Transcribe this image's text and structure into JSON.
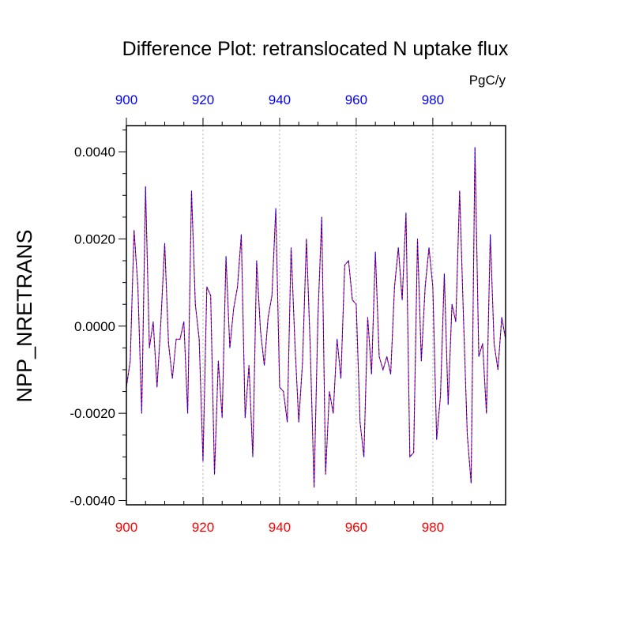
{
  "chart_data": {
    "type": "line",
    "title": "Difference Plot: retranslocated N uptake flux",
    "units": "PgC/y",
    "ylabel": "NPP_NRETRANS",
    "xlabel": "",
    "xlim": [
      900,
      999
    ],
    "ylim": [
      -0.0041,
      0.0046
    ],
    "x_ticks": [
      900,
      920,
      940,
      960,
      980
    ],
    "y_ticks": [
      0.004,
      0.002,
      0.0,
      -0.002,
      -0.004
    ],
    "y_tick_labels": [
      "0.0040",
      "0.0020",
      "0.0000",
      "-0.0020",
      "-0.0040"
    ],
    "grid": "vertical dotted at major x ticks",
    "colors": {
      "bottom_axis_labels": "#ff0000",
      "top_axis_labels": "#0000ff",
      "series_a": "#ff0000",
      "series_b": "#0000ff"
    },
    "x_start": 900,
    "x_step": 1,
    "series": [
      {
        "values": [
          -0.0014,
          -0.0008,
          0.0022,
          0.0009,
          -0.002,
          0.0032,
          -0.0005,
          0.0001,
          -0.0014,
          0.0001,
          0.0019,
          -0.0004,
          -0.0012,
          -0.0003,
          -0.0003,
          0.0001,
          -0.002,
          0.0031,
          0.0005,
          -0.0003,
          -0.0031,
          0.0009,
          0.0007,
          -0.0034,
          -0.0008,
          -0.0021,
          0.0016,
          -0.0005,
          0.0004,
          0.0009,
          0.0021,
          -0.0021,
          -0.0009,
          -0.003,
          0.0015,
          -0.0001,
          -0.0009,
          0.0002,
          0.0007,
          0.0027,
          -0.0014,
          -0.0015,
          -0.0022,
          0.0018,
          -0.0004,
          -0.0022,
          -0.0008,
          0.002,
          -0.0005,
          -0.0037,
          0.0002,
          0.0025,
          -0.0034,
          -0.0015,
          -0.002,
          -0.0003,
          -0.0012,
          0.0014,
          0.0015,
          0.0006,
          0.0005,
          -0.0022,
          -0.003,
          0.0002,
          -0.0011,
          0.0017,
          -0.0007,
          -0.001,
          -0.0007,
          -0.0011,
          0.0009,
          0.0018,
          0.0006,
          0.0026,
          -0.003,
          -0.0029,
          0.002,
          -0.0008,
          0.0009,
          0.0018,
          0.0009,
          -0.0026,
          -0.0016,
          0.0012,
          -0.0018,
          0.0005,
          0.0001,
          0.0031,
          0.0002,
          -0.0025,
          -0.0036,
          0.0041,
          -0.0007,
          -0.0004,
          -0.002,
          0.0021,
          -0.0004,
          -0.001,
          0.0002,
          -0.0003
        ]
      }
    ]
  }
}
